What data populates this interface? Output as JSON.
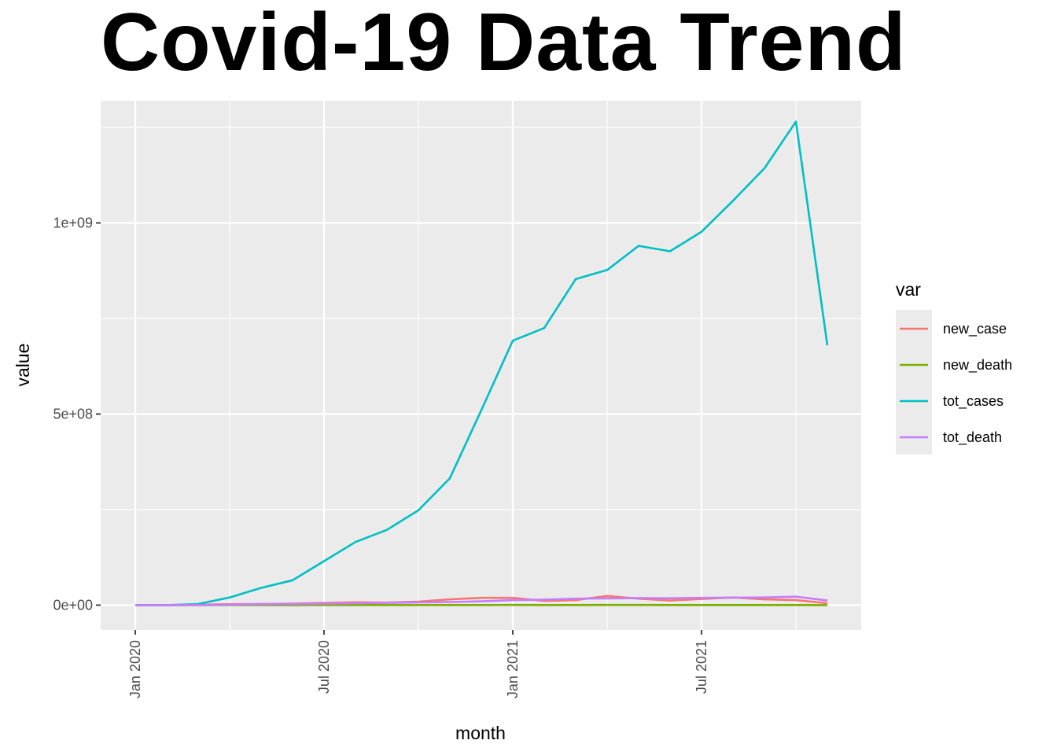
{
  "chart_data": {
    "type": "line",
    "title": "Covid-19 Data Trend",
    "xlabel": "month",
    "ylabel": "value",
    "x": [
      "2020-01",
      "2020-02",
      "2020-03",
      "2020-04",
      "2020-05",
      "2020-06",
      "2020-07",
      "2020-08",
      "2020-09",
      "2020-10",
      "2020-11",
      "2020-12",
      "2021-01",
      "2021-02",
      "2021-03",
      "2021-04",
      "2021-05",
      "2021-06",
      "2021-07",
      "2021-08",
      "2021-09",
      "2021-10",
      "2021-11"
    ],
    "x_ticks": [
      {
        "date": "2020-01",
        "label": "Jan 2020"
      },
      {
        "date": "2020-07",
        "label": "Jul 2020"
      },
      {
        "date": "2021-01",
        "label": "Jan 2021"
      },
      {
        "date": "2021-07",
        "label": "Jul 2021"
      }
    ],
    "y_ticks": [
      {
        "value": 0,
        "label": "0e+00"
      },
      {
        "value": 500000000,
        "label": "5e+08"
      },
      {
        "value": 1000000000,
        "label": "1e+09"
      }
    ],
    "ylim": [
      -65000000,
      1320000000
    ],
    "xlim": [
      "2019-12",
      "2021-12"
    ],
    "grid": true,
    "legend": {
      "title": "var",
      "position": "right"
    },
    "series": [
      {
        "name": "new_case",
        "color": "#F8766D",
        "values": [
          0,
          100000,
          1000000,
          2500000,
          3000000,
          4000000,
          5500000,
          7500000,
          6500000,
          9000000,
          15000000,
          19000000,
          19000000,
          11000000,
          13000000,
          24000000,
          17000000,
          12000000,
          16000000,
          20000000,
          15000000,
          13000000,
          5000000
        ]
      },
      {
        "name": "new_death",
        "color": "#7CAE00",
        "values": [
          0,
          2000,
          40000,
          180000,
          150000,
          130000,
          170000,
          180000,
          160000,
          170000,
          250000,
          330000,
          400000,
          300000,
          280000,
          380000,
          380000,
          260000,
          260000,
          300000,
          270000,
          200000,
          100000
        ]
      },
      {
        "name": "tot_cases",
        "color": "#00BFC4",
        "values": [
          0,
          0,
          3000000,
          20000000,
          45000000,
          65000000,
          115000000,
          165000000,
          197000000,
          248000000,
          332000000,
          510000000,
          692000000,
          725000000,
          853000000,
          877000000,
          940000000,
          926000000,
          977000000,
          1058000000,
          1143000000,
          1265000000,
          680000000
        ]
      },
      {
        "name": "tot_death",
        "color": "#C77CFF",
        "values": [
          0,
          0,
          200000,
          1500000,
          2500000,
          3200000,
          4000000,
          5000000,
          6000000,
          7000000,
          8000000,
          10000000,
          13000000,
          14500000,
          17000000,
          17500000,
          18500000,
          18000000,
          19000000,
          19500000,
          20000000,
          22000000,
          12000000
        ]
      }
    ]
  }
}
